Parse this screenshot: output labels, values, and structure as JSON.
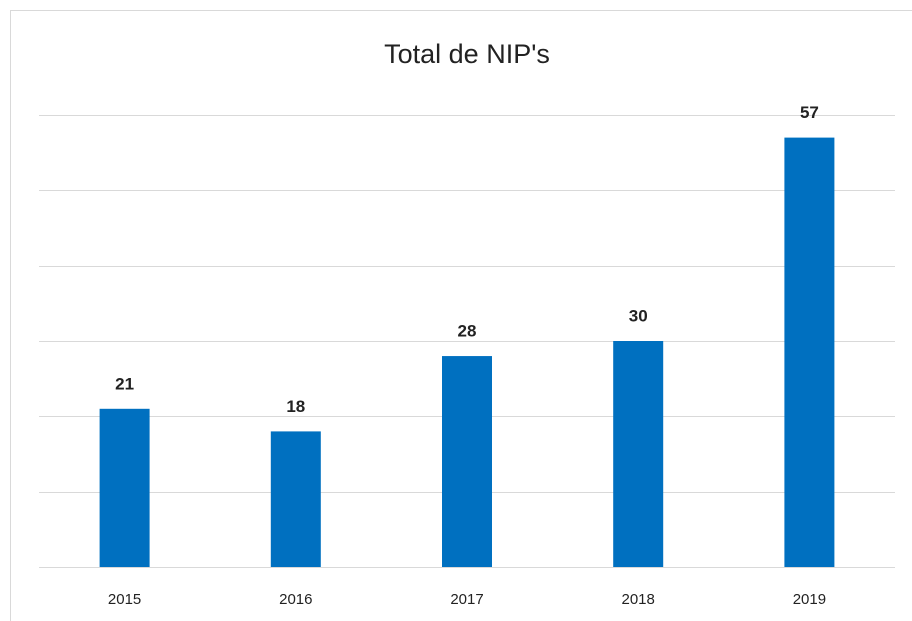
{
  "chart_data": {
    "type": "bar",
    "title": "Total de NIP's",
    "categories": [
      "2015",
      "2016",
      "2017",
      "2018",
      "2019"
    ],
    "values": [
      21,
      18,
      28,
      30,
      57
    ],
    "color": "#0070c0",
    "ylim": [
      0,
      60
    ],
    "yticks": [
      0,
      10,
      20,
      30,
      40,
      50,
      60
    ],
    "grid": true
  }
}
